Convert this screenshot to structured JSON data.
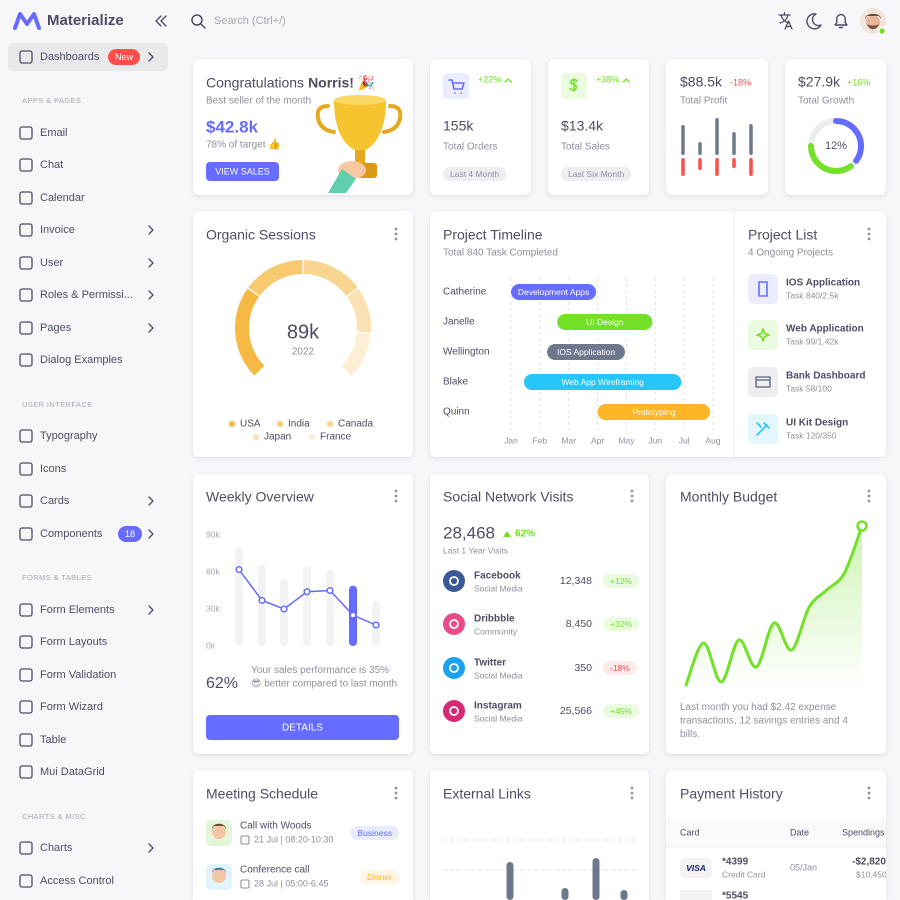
{
  "sidebar": {
    "brand": "Materialize",
    "dashboards": {
      "label": "Dashboards",
      "badge": "New",
      "submenu": true
    },
    "sections": [
      {
        "heading": "APPS & PAGES",
        "items": [
          {
            "label": "Email"
          },
          {
            "label": "Chat"
          },
          {
            "label": "Calendar"
          },
          {
            "label": "Invoice",
            "submenu": true
          },
          {
            "label": "User",
            "submenu": true
          },
          {
            "label": "Roles & Permissi...",
            "submenu": true
          },
          {
            "label": "Pages",
            "submenu": true
          },
          {
            "label": "Dialog Examples"
          }
        ]
      },
      {
        "heading": "USER INTERFACE",
        "items": [
          {
            "label": "Typography"
          },
          {
            "label": "Icons"
          },
          {
            "label": "Cards",
            "submenu": true
          },
          {
            "label": "Components",
            "badge": 18,
            "submenu": true
          }
        ]
      },
      {
        "heading": "FORMS & TABLES",
        "items": [
          {
            "label": "Form Elements",
            "submenu": true
          },
          {
            "label": "Form Layouts"
          },
          {
            "label": "Form Validation"
          },
          {
            "label": "Form Wizard"
          },
          {
            "label": "Table"
          },
          {
            "label": "Mui DataGrid"
          }
        ]
      },
      {
        "heading": "CHARTS & MISC",
        "items": [
          {
            "label": "Charts",
            "submenu": true
          },
          {
            "label": "Access Control"
          }
        ]
      }
    ]
  },
  "topbar": {
    "search": "Search (Ctrl+/)"
  },
  "congrats": {
    "title": "Congratulations",
    "name": "Norris! 🎉",
    "subtitle": "Best seller of the month",
    "amount": "$42.8k",
    "target": "78% of target 👍",
    "button": "VIEW SALES"
  },
  "stats": [
    {
      "change": "+22%",
      "value": "155k",
      "label": "Total Orders",
      "chip": "Last 4 Month"
    },
    {
      "change": "+38%",
      "value": "$13.4k",
      "label": "Total Sales",
      "chip": "Last Six Month"
    }
  ],
  "profit": {
    "value": "$88.5k",
    "change": "-18%",
    "label": "Total Profit",
    "bars_up": [
      30,
      13,
      37,
      23,
      31
    ],
    "bars_down": [
      18,
      12,
      18,
      10,
      18
    ]
  },
  "growth": {
    "value": "$27.9k",
    "change": "+16%",
    "label": "Total Growth",
    "percent": "12%",
    "ring": [
      {
        "value": 35,
        "color": "#666cff"
      },
      {
        "value": 35,
        "color": "#72e128"
      }
    ]
  },
  "organic": {
    "title": "Organic Sessions",
    "value": "89k",
    "year": "2022",
    "segments": [
      {
        "name": "USA",
        "value": 30,
        "color": "#f5b944"
      },
      {
        "name": "India",
        "value": 20,
        "color": "#f7ca6f"
      },
      {
        "name": "Canada",
        "value": 20,
        "color": "#f9d68f"
      },
      {
        "name": "Japan",
        "value": 15,
        "color": "#fbe2b4"
      },
      {
        "name": "France",
        "value": 15,
        "color": "#fdefd6"
      }
    ]
  },
  "timeline": {
    "title": "Project Timeline",
    "subtitle": "Total 840 Task Completed",
    "months": [
      "Jan",
      "Feb",
      "Mar",
      "Apr",
      "May",
      "Jun",
      "Jul",
      "Aug"
    ],
    "xlim": [
      0,
      7
    ],
    "tasks": [
      {
        "person": "Catherine",
        "task": "Development Apps",
        "start": 0,
        "end": 2.95,
        "color": "#666cff"
      },
      {
        "person": "Janelle",
        "task": "UI Design",
        "start": 1.6,
        "end": 4.9,
        "color": "#72e128"
      },
      {
        "person": "Wellington",
        "task": "IOS Application",
        "start": 1.25,
        "end": 3.95,
        "color": "#6d788d"
      },
      {
        "person": "Blake",
        "task": "Web App Wireframing",
        "start": 0.45,
        "end": 5.9,
        "color": "#26c6f9"
      },
      {
        "person": "Quinn",
        "task": "Prototyping",
        "start": 3.0,
        "end": 6.9,
        "color": "#fdb528"
      }
    ]
  },
  "project_list": {
    "title": "Project List",
    "subtitle": "4 Ongoing Projects",
    "items": [
      {
        "name": "IOS Application",
        "tasks": "Task 840/2.5k"
      },
      {
        "name": "Web Application",
        "tasks": "Task 99/1.42k"
      },
      {
        "name": "Bank Dashboard",
        "tasks": "Task 58/100"
      },
      {
        "name": "UI Kit Design",
        "tasks": "Task 120/350"
      }
    ]
  },
  "weekly": {
    "title": "Weekly Overview",
    "ylim": [
      0,
      90000
    ],
    "yticks": [
      {
        "value": 90000,
        "label": "90k"
      },
      {
        "value": 60000,
        "label": "60k"
      },
      {
        "value": 30000,
        "label": "30k"
      },
      {
        "value": 0,
        "label": "0k"
      }
    ],
    "bars": [
      80000,
      66000,
      54000,
      65000,
      62000,
      49000,
      37000
    ],
    "line": [
      62000,
      37000,
      30000,
      44000,
      45000,
      25000,
      17000
    ],
    "highlight": 5,
    "percent": "62%",
    "text": "Your sales performance is 35% 😎 better compared to last month",
    "button": "DETAILS"
  },
  "social": {
    "title": "Social Network Visits",
    "total": "28,468",
    "change": "62%",
    "subtitle": "Last 1 Year Visits",
    "rows": [
      {
        "name": "Facebook",
        "sub": "Social Media",
        "value": "12,348",
        "change": "+12%",
        "color": "#3b5998"
      },
      {
        "name": "Dribbble",
        "sub": "Community",
        "value": "8,450",
        "change": "+32%",
        "color": "#ea4c89"
      },
      {
        "name": "Twitter",
        "sub": "Social Media",
        "value": "350",
        "change": "-18%",
        "color": "#1da1f2"
      },
      {
        "name": "Instagram",
        "sub": "Social Media",
        "value": "25,566",
        "change": "+45%",
        "color": "#d62976"
      }
    ]
  },
  "budget": {
    "title": "Monthly Budget",
    "line": [
      0,
      42,
      3,
      45,
      18,
      62,
      35,
      78,
      95,
      112,
      159
    ],
    "text": "Last month you had $2.42 expense transactions, 12 savings entries and 4 bills."
  },
  "meetings": {
    "title": "Meeting Schedule",
    "items": [
      {
        "title": "Call with Woods",
        "time": "21 Jul | 08:20-10:30",
        "tag": "Business",
        "color": "#666cff"
      },
      {
        "title": "Conference call",
        "time": "28 Jul | 05:00-6:45",
        "tag": "Dinner",
        "color": "#fdb528"
      }
    ]
  },
  "external": {
    "title": "External Links",
    "bars": [
      38,
      12,
      42,
      10
    ]
  },
  "payment": {
    "title": "Payment History",
    "headers": [
      "Card",
      "Date",
      "Spendings"
    ],
    "rows": [
      {
        "logo": "VISA",
        "card": "*4399",
        "type": "Credit Card",
        "date": "05/Jan",
        "spent": "-$2,820",
        "balance": "$10,450"
      },
      {
        "card": "*5545"
      }
    ]
  }
}
